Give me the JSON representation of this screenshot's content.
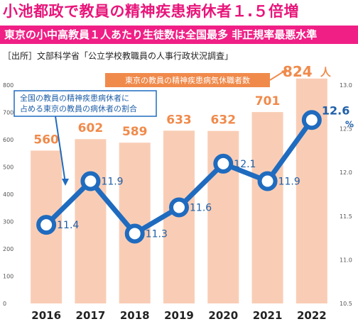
{
  "header": {
    "title": "小池都政で教員の精神疾患病休者１.５倍増",
    "subtitle": "東京の小中高教員１人あたり生徒数は全国最多 非正規率最悪水準",
    "source": "［出所］文部科学省「公立学校教職員の人事行政状況調査」"
  },
  "chart_data": {
    "type": "bar+line",
    "categories": [
      "2016",
      "2017",
      "2018",
      "2019",
      "2020",
      "2021",
      "2022"
    ],
    "series": [
      {
        "name": "東京の教員の精神疾患病気休職者数",
        "type": "bar",
        "axis": "left",
        "values": [
          560,
          602,
          589,
          633,
          632,
          701,
          824
        ],
        "labels": [
          "560",
          "602",
          "589",
          "633",
          "632",
          "701",
          "824"
        ]
      },
      {
        "name": "全国の教員の精神疾患病休者に占める東京の教員の病休者の割合",
        "type": "line",
        "axis": "right",
        "values": [
          11.4,
          11.9,
          11.3,
          11.6,
          12.1,
          11.9,
          12.6
        ],
        "labels": [
          "11.4",
          "11.9",
          "11.3",
          "11.6",
          "12.1",
          "11.9",
          "12.6"
        ]
      }
    ],
    "last_bar_unit": "人",
    "right_unit": "%",
    "left_axis": {
      "range": [
        0,
        800
      ],
      "ticks": [
        "0",
        "100",
        "200",
        "300",
        "400",
        "500",
        "600",
        "700",
        "800"
      ]
    },
    "right_axis": {
      "range": [
        10.5,
        13.0
      ],
      "ticks": [
        "10.5",
        "11.0",
        "11.5",
        "12.0",
        "12.5",
        "13.0"
      ]
    },
    "annotations": {
      "bar_callout": "東京の教員の精神疾患病気休職者数",
      "line_callout": [
        "全国の教員の精神疾患病休者に",
        "占める東京の教員の病休者の割合"
      ]
    },
    "colors": {
      "bar": "#f9cdb5",
      "bar_label": "#f08a4b",
      "line": "#1f6bbf",
      "title": "#e8157a",
      "subtitle_bg": "#f01f85"
    }
  }
}
